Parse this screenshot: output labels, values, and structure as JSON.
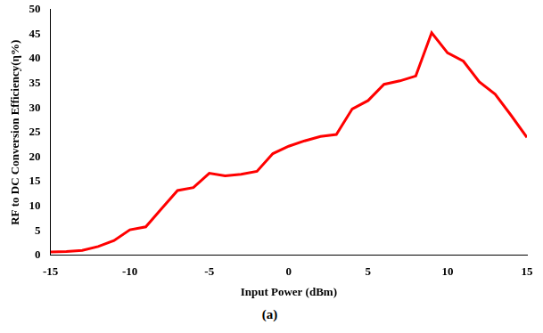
{
  "chart_data": {
    "type": "line",
    "x_label": "Input Power (dBm)",
    "y_label": "RF to DC Conversion Efficiency(η%)",
    "caption": "(a)",
    "x": [
      -15,
      -14,
      -13,
      -12,
      -11,
      -10,
      -9,
      -8,
      -7,
      -6,
      -5,
      -4,
      -3,
      -2,
      -1,
      0,
      1,
      2,
      3,
      4,
      5,
      6,
      7,
      8,
      9,
      10,
      11,
      12,
      13,
      14,
      15
    ],
    "values": [
      0.7,
      0.8,
      1.0,
      1.8,
      3.0,
      5.2,
      5.8,
      9.5,
      13.2,
      13.8,
      16.7,
      16.2,
      16.5,
      17.1,
      20.7,
      22.2,
      23.3,
      24.2,
      24.6,
      29.8,
      31.5,
      34.8,
      35.5,
      36.5,
      45.3,
      41.2,
      39.5,
      35.3,
      32.8,
      28.5,
      24.0
    ],
    "color": "#ff0000",
    "xlim": [
      -15,
      15
    ],
    "xticks": [
      -15,
      -10,
      -5,
      0,
      5,
      10,
      15
    ],
    "ylim": [
      0,
      50
    ],
    "yticks": [
      0,
      5,
      10,
      15,
      20,
      25,
      30,
      35,
      40,
      45,
      50
    ],
    "grid": false
  }
}
